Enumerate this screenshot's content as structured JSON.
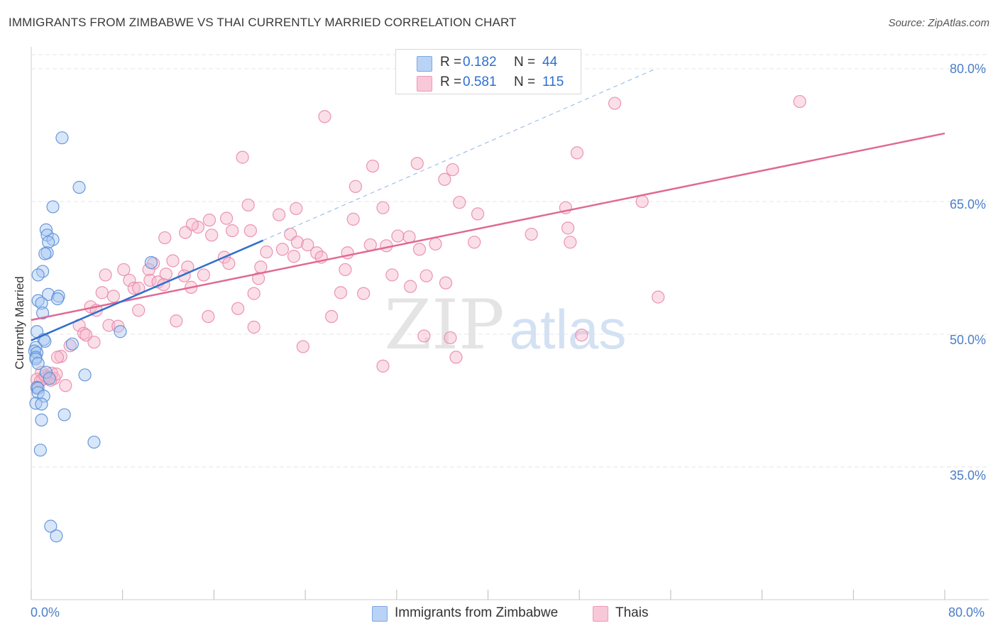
{
  "header": {
    "title": "IMMIGRANTS FROM ZIMBABWE VS THAI CURRENTLY MARRIED CORRELATION CHART",
    "source": "Source: ZipAtlas.com"
  },
  "watermark": {
    "part1": "ZIP",
    "part2": "atlas"
  },
  "colors": {
    "series1_fill": "#a9c8f2",
    "series1_stroke": "#5a8fd6",
    "series1_line": "#2e6fcf",
    "series2_fill": "#f6b8cd",
    "series2_stroke": "#e88aa9",
    "series2_line": "#e06a94",
    "tick_label": "#4a7ec8",
    "grid": "#e6e6e6"
  },
  "legend_top": {
    "rows": [
      {
        "r_label": "R =",
        "r_value": "0.182",
        "n_label": "N =",
        "n_value": "44"
      },
      {
        "r_label": "R =",
        "r_value": "0.581",
        "n_label": "N =",
        "n_value": "115"
      }
    ]
  },
  "legend_bottom": {
    "items": [
      {
        "label": "Immigrants from Zimbabwe"
      },
      {
        "label": "Thais"
      }
    ]
  },
  "chart_data": {
    "type": "scatter",
    "title": "IMMIGRANTS FROM ZIMBABWE VS THAI CURRENTLY MARRIED CORRELATION CHART",
    "xlabel": "",
    "ylabel": "Currently Married",
    "xlim": [
      0,
      80
    ],
    "ylim": [
      20,
      82
    ],
    "x_tick_labels": [
      "0.0%",
      "80.0%"
    ],
    "y_ticks": [
      35,
      50,
      65,
      80
    ],
    "y_tick_labels": [
      "35.0%",
      "50.0%",
      "65.0%",
      "80.0%"
    ],
    "x_minor_ticks": [
      0,
      8,
      16,
      24,
      32,
      40,
      48,
      56,
      64,
      72,
      80
    ],
    "grid": true,
    "legend_position": "top-center",
    "series": [
      {
        "name": "Immigrants from Zimbabwe",
        "R": 0.182,
        "N": 44,
        "trend": {
          "x0": 0,
          "y0": 49.3,
          "x1": 20.3,
          "y1": 60.6
        },
        "trend_dashed": {
          "x0": 20.3,
          "y0": 60.6,
          "x1": 54.5,
          "y1": 79.9
        },
        "points": [
          [
            2.7,
            72.2
          ],
          [
            4.2,
            66.6
          ],
          [
            1.9,
            64.4
          ],
          [
            1.3,
            61.8
          ],
          [
            1.4,
            61.2
          ],
          [
            1.9,
            60.7
          ],
          [
            1.5,
            60.4
          ],
          [
            1.4,
            59.2
          ],
          [
            1.2,
            59.1
          ],
          [
            1.0,
            57.1
          ],
          [
            0.6,
            56.7
          ],
          [
            1.5,
            54.5
          ],
          [
            2.4,
            54.3
          ],
          [
            2.3,
            54.0
          ],
          [
            0.6,
            53.8
          ],
          [
            0.9,
            53.5
          ],
          [
            1.0,
            52.4
          ],
          [
            0.5,
            50.3
          ],
          [
            1.1,
            49.4
          ],
          [
            1.2,
            49.2
          ],
          [
            3.6,
            48.9
          ],
          [
            0.4,
            48.5
          ],
          [
            0.3,
            48.1
          ],
          [
            0.5,
            47.9
          ],
          [
            0.4,
            47.4
          ],
          [
            0.4,
            47.2
          ],
          [
            0.6,
            46.7
          ],
          [
            1.3,
            45.7
          ],
          [
            4.7,
            45.4
          ],
          [
            1.6,
            45.0
          ],
          [
            0.5,
            44.0
          ],
          [
            0.6,
            43.9
          ],
          [
            0.6,
            43.4
          ],
          [
            1.1,
            43.0
          ],
          [
            0.4,
            42.2
          ],
          [
            0.9,
            42.1
          ],
          [
            2.9,
            40.9
          ],
          [
            0.9,
            40.3
          ],
          [
            5.5,
            37.8
          ],
          [
            0.8,
            36.9
          ],
          [
            1.7,
            28.3
          ],
          [
            2.2,
            27.2
          ],
          [
            10.5,
            58.1
          ],
          [
            7.8,
            50.3
          ]
        ]
      },
      {
        "name": "Thais",
        "R": 0.581,
        "N": 115,
        "trend": {
          "x0": 0,
          "y0": 51.6,
          "x1": 80,
          "y1": 72.7
        },
        "points": [
          [
            25.7,
            74.6
          ],
          [
            51.1,
            76.1
          ],
          [
            67.3,
            76.3
          ],
          [
            18.5,
            70.0
          ],
          [
            47.8,
            70.5
          ],
          [
            29.9,
            69.0
          ],
          [
            33.8,
            69.3
          ],
          [
            36.9,
            68.6
          ],
          [
            28.4,
            66.7
          ],
          [
            36.2,
            67.5
          ],
          [
            19.0,
            64.6
          ],
          [
            23.2,
            64.2
          ],
          [
            30.8,
            64.3
          ],
          [
            37.5,
            64.9
          ],
          [
            53.5,
            65.0
          ],
          [
            46.8,
            64.3
          ],
          [
            21.7,
            63.5
          ],
          [
            28.2,
            63.0
          ],
          [
            39.1,
            63.6
          ],
          [
            17.1,
            63.1
          ],
          [
            15.6,
            62.9
          ],
          [
            14.6,
            62.1
          ],
          [
            14.1,
            62.4
          ],
          [
            13.5,
            61.5
          ],
          [
            17.6,
            61.7
          ],
          [
            19.2,
            61.7
          ],
          [
            22.7,
            61.3
          ],
          [
            11.7,
            60.9
          ],
          [
            15.8,
            61.2
          ],
          [
            47.0,
            62.0
          ],
          [
            43.8,
            61.3
          ],
          [
            32.1,
            61.1
          ],
          [
            33.1,
            61.0
          ],
          [
            38.8,
            60.4
          ],
          [
            23.3,
            60.4
          ],
          [
            24.2,
            60.1
          ],
          [
            29.7,
            60.1
          ],
          [
            31.1,
            60.0
          ],
          [
            35.4,
            60.2
          ],
          [
            47.2,
            60.4
          ],
          [
            22.0,
            59.6
          ],
          [
            20.6,
            59.3
          ],
          [
            34.0,
            59.6
          ],
          [
            27.7,
            59.2
          ],
          [
            25.0,
            59.2
          ],
          [
            16.9,
            58.7
          ],
          [
            23.0,
            58.8
          ],
          [
            25.4,
            58.7
          ],
          [
            17.3,
            58.0
          ],
          [
            10.7,
            58.0
          ],
          [
            12.4,
            58.3
          ],
          [
            13.7,
            57.6
          ],
          [
            10.3,
            57.3
          ],
          [
            20.1,
            57.6
          ],
          [
            8.1,
            57.3
          ],
          [
            11.8,
            56.8
          ],
          [
            19.9,
            56.3
          ],
          [
            27.5,
            57.3
          ],
          [
            6.5,
            56.7
          ],
          [
            13.4,
            56.6
          ],
          [
            15.1,
            56.7
          ],
          [
            31.6,
            56.7
          ],
          [
            34.6,
            56.6
          ],
          [
            8.6,
            56.1
          ],
          [
            10.4,
            56.1
          ],
          [
            11.1,
            55.9
          ],
          [
            36.3,
            55.8
          ],
          [
            11.6,
            55.6
          ],
          [
            9.0,
            55.2
          ],
          [
            14.0,
            55.3
          ],
          [
            9.4,
            55.2
          ],
          [
            33.2,
            55.4
          ],
          [
            6.2,
            54.7
          ],
          [
            19.5,
            54.6
          ],
          [
            27.1,
            54.7
          ],
          [
            29.1,
            54.6
          ],
          [
            7.2,
            54.3
          ],
          [
            54.9,
            54.2
          ],
          [
            5.2,
            53.1
          ],
          [
            18.1,
            52.9
          ],
          [
            5.7,
            52.7
          ],
          [
            9.4,
            52.7
          ],
          [
            15.5,
            52.0
          ],
          [
            26.3,
            52.0
          ],
          [
            12.7,
            51.5
          ],
          [
            6.8,
            51.0
          ],
          [
            7.6,
            50.9
          ],
          [
            19.5,
            50.8
          ],
          [
            4.2,
            51.0
          ],
          [
            4.6,
            50.1
          ],
          [
            4.8,
            49.9
          ],
          [
            34.4,
            49.8
          ],
          [
            36.7,
            49.6
          ],
          [
            48.2,
            49.9
          ],
          [
            5.5,
            49.1
          ],
          [
            3.4,
            48.7
          ],
          [
            23.8,
            48.6
          ],
          [
            2.6,
            47.5
          ],
          [
            2.3,
            47.4
          ],
          [
            37.2,
            47.4
          ],
          [
            30.8,
            46.4
          ],
          [
            0.9,
            45.7
          ],
          [
            1.8,
            45.6
          ],
          [
            1.5,
            45.2
          ],
          [
            1.3,
            45.1
          ],
          [
            1.4,
            45.0
          ],
          [
            1.0,
            44.9
          ],
          [
            0.5,
            44.9
          ],
          [
            0.8,
            44.7
          ],
          [
            3.0,
            44.2
          ],
          [
            0.5,
            43.9
          ],
          [
            2.0,
            45.0
          ],
          [
            1.2,
            45.3
          ],
          [
            1.7,
            44.8
          ],
          [
            2.2,
            45.5
          ]
        ]
      }
    ]
  }
}
